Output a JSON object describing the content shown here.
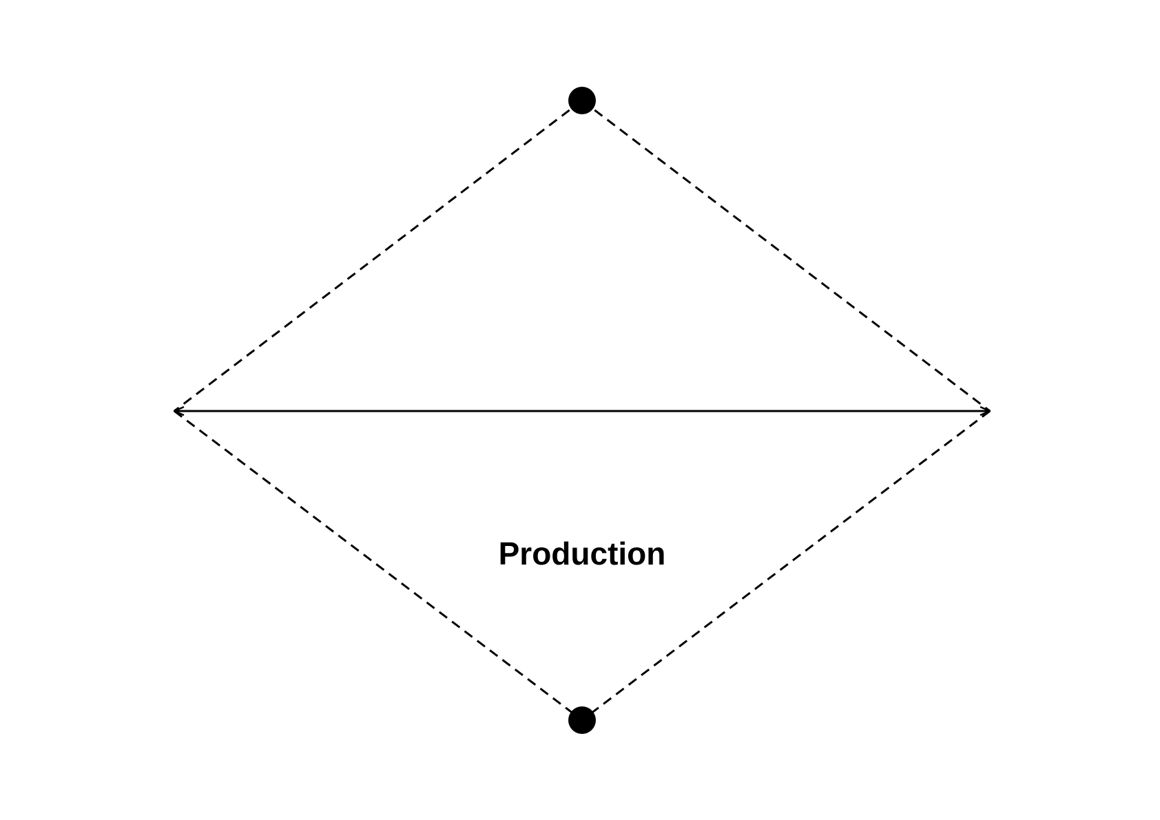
{
  "diagram": {
    "label": "Production",
    "colors": {
      "background": "#ffffff",
      "stroke": "#000000",
      "node": "#000000"
    },
    "nodes": [
      {
        "id": "top-node",
        "shape": "filled-circle"
      },
      {
        "id": "bottom-node",
        "shape": "filled-circle"
      }
    ],
    "edges": [
      {
        "id": "top-left-edge",
        "style": "dashed"
      },
      {
        "id": "top-right-edge",
        "style": "dashed"
      },
      {
        "id": "bottom-left-edge",
        "style": "dashed"
      },
      {
        "id": "bottom-right-edge",
        "style": "dashed"
      },
      {
        "id": "horizontal-arrow",
        "style": "solid",
        "heads": "both"
      }
    ]
  }
}
